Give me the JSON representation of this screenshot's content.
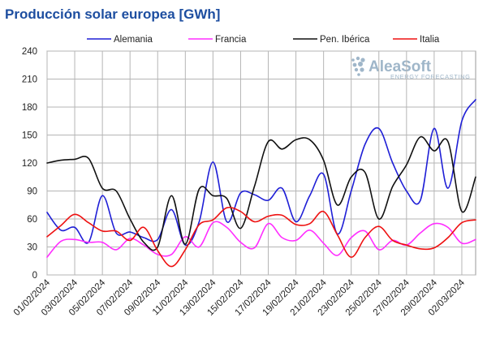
{
  "chart_data": {
    "type": "line",
    "title": "Producción solar europea [GWh]",
    "xlabel": "",
    "ylabel": "",
    "ylim": [
      0,
      240
    ],
    "yticks": [
      0,
      30,
      60,
      90,
      120,
      150,
      180,
      210,
      240
    ],
    "grid": true,
    "legend_position": "top",
    "x": [
      "01/02/2024",
      "02/02/2024",
      "03/02/2024",
      "04/02/2024",
      "05/02/2024",
      "06/02/2024",
      "07/02/2024",
      "08/02/2024",
      "09/02/2024",
      "10/02/2024",
      "11/02/2024",
      "12/02/2024",
      "13/02/2024",
      "14/02/2024",
      "15/02/2024",
      "16/02/2024",
      "17/02/2024",
      "18/02/2024",
      "19/02/2024",
      "20/02/2024",
      "21/02/2024",
      "22/02/2024",
      "23/02/2024",
      "24/02/2024",
      "25/02/2024",
      "26/02/2024",
      "27/02/2024",
      "28/02/2024",
      "29/02/2024",
      "01/03/2024",
      "02/03/2024",
      "03/03/2024"
    ],
    "xticks": [
      "01/02/2024",
      "03/02/2024",
      "05/02/2024",
      "07/02/2024",
      "09/02/2024",
      "11/02/2024",
      "13/02/2024",
      "15/02/2024",
      "17/02/2024",
      "19/02/2024",
      "21/02/2024",
      "23/02/2024",
      "25/02/2024",
      "27/02/2024",
      "29/02/2024",
      "02/03/2024"
    ],
    "series": [
      {
        "name": "Alemania",
        "color": "#1f1fd6",
        "values": [
          67,
          48,
          51,
          35,
          85,
          45,
          46,
          40,
          38,
          70,
          32,
          57,
          121,
          57,
          88,
          86,
          80,
          93,
          57,
          85,
          108,
          44,
          90,
          140,
          157,
          120,
          90,
          80,
          157,
          93,
          165,
          188
        ]
      },
      {
        "name": "Francia",
        "color": "#ff2eff",
        "values": [
          19,
          36,
          38,
          35,
          35,
          27,
          39,
          32,
          22,
          22,
          41,
          30,
          56,
          51,
          35,
          29,
          55,
          40,
          37,
          48,
          34,
          21,
          40,
          47,
          27,
          37,
          32,
          45,
          55,
          51,
          34,
          38
        ]
      },
      {
        "name": "Pen. Ibérica",
        "color": "#111111",
        "values": [
          120,
          123,
          124,
          125,
          93,
          90,
          60,
          35,
          30,
          85,
          33,
          92,
          85,
          82,
          50,
          95,
          143,
          135,
          145,
          145,
          123,
          75,
          105,
          110,
          60,
          95,
          118,
          148,
          133,
          143,
          68,
          105
        ]
      },
      {
        "name": "Italia",
        "color": "#ee1111",
        "values": [
          41,
          53,
          65,
          56,
          47,
          47,
          37,
          51,
          26,
          9,
          27,
          54,
          59,
          72,
          68,
          57,
          63,
          64,
          54,
          55,
          68,
          43,
          19,
          40,
          52,
          37,
          32,
          28,
          29,
          40,
          56,
          59
        ]
      }
    ]
  },
  "brand": {
    "name": "AleaSoft",
    "tagline": "ENERGY FORECASTING"
  }
}
